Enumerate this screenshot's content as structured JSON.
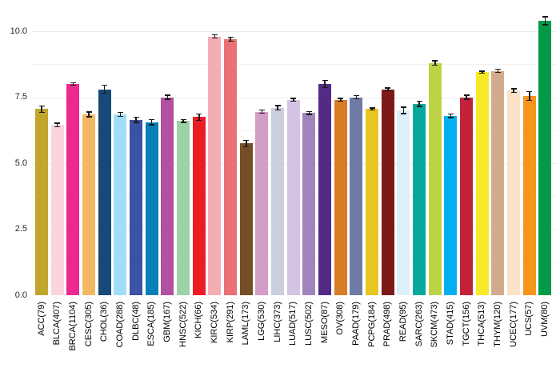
{
  "chart_data": {
    "type": "bar",
    "title": "",
    "xlabel": "",
    "ylabel": "",
    "ylim": [
      0,
      10.8
    ],
    "grid": "horizontal, light gray, minor step 1.25",
    "legend": false,
    "error_bars": true,
    "yticks": [
      {
        "value": 0.0,
        "label": "0.0"
      },
      {
        "value": 2.5,
        "label": "2.5"
      },
      {
        "value": 5.0,
        "label": "5.0"
      },
      {
        "value": 7.5,
        "label": "7.5"
      },
      {
        "value": 10.0,
        "label": "10.0"
      }
    ],
    "minor_gridline_values": [
      1.25,
      3.75,
      6.25,
      8.75
    ],
    "categories": [
      "ACC(79)",
      "BLCA(407)",
      "BRCA(1104)",
      "CESC(305)",
      "CHOL(36)",
      "COAD(288)",
      "DLBC(48)",
      "ESCA(185)",
      "GBM(167)",
      "HNSC(522)",
      "KICH(66)",
      "KIRC(534)",
      "KIRP(291)",
      "LAML(173)",
      "LGG(530)",
      "LIHC(373)",
      "LUAD(517)",
      "LUSC(502)",
      "MESO(87)",
      "OV(308)",
      "PAAD(179)",
      "PCPG(184)",
      "PRAD(498)",
      "READ(95)",
      "SARC(263)",
      "SKCM(473)",
      "STAD(415)",
      "TGCT(156)",
      "THCA(513)",
      "THYM(120)",
      "UCEC(177)",
      "UCS(57)",
      "UVM(80)"
    ],
    "values": [
      7.05,
      6.45,
      8.0,
      6.85,
      7.8,
      6.85,
      6.65,
      6.55,
      7.5,
      6.6,
      6.75,
      9.8,
      9.7,
      5.75,
      6.95,
      7.1,
      7.4,
      6.9,
      8.0,
      7.4,
      7.5,
      7.05,
      7.8,
      7.0,
      7.25,
      8.8,
      6.8,
      7.5,
      8.45,
      8.5,
      7.75,
      7.55,
      10.4
    ],
    "errors": [
      0.12,
      0.07,
      0.05,
      0.09,
      0.15,
      0.07,
      0.1,
      0.1,
      0.07,
      0.05,
      0.12,
      0.06,
      0.08,
      0.12,
      0.06,
      0.09,
      0.05,
      0.05,
      0.14,
      0.05,
      0.06,
      0.04,
      0.05,
      0.12,
      0.1,
      0.08,
      0.07,
      0.08,
      0.04,
      0.06,
      0.07,
      0.17,
      0.15
    ],
    "colors": [
      "#c2a52d",
      "#f9d6de",
      "#ed2891",
      "#f3b862",
      "#15497a",
      "#a2ddf7",
      "#3b53a3",
      "#0680b5",
      "#b3509f",
      "#9bd3a8",
      "#ec1c24",
      "#f5adb4",
      "#ea7075",
      "#764e27",
      "#d49dc6",
      "#cbcedd",
      "#d4c3e2",
      "#a085bd",
      "#532b87",
      "#d87d25",
      "#6f7ba6",
      "#e8c720",
      "#7d1a18",
      "#ddeff8",
      "#04a99c",
      "#bcd346",
      "#03aff2",
      "#c2233b",
      "#f6e926",
      "#d2ab8d",
      "#fbe3c7",
      "#f7941d",
      "#029a47"
    ],
    "error_bar_color": "#1a1a1a"
  }
}
